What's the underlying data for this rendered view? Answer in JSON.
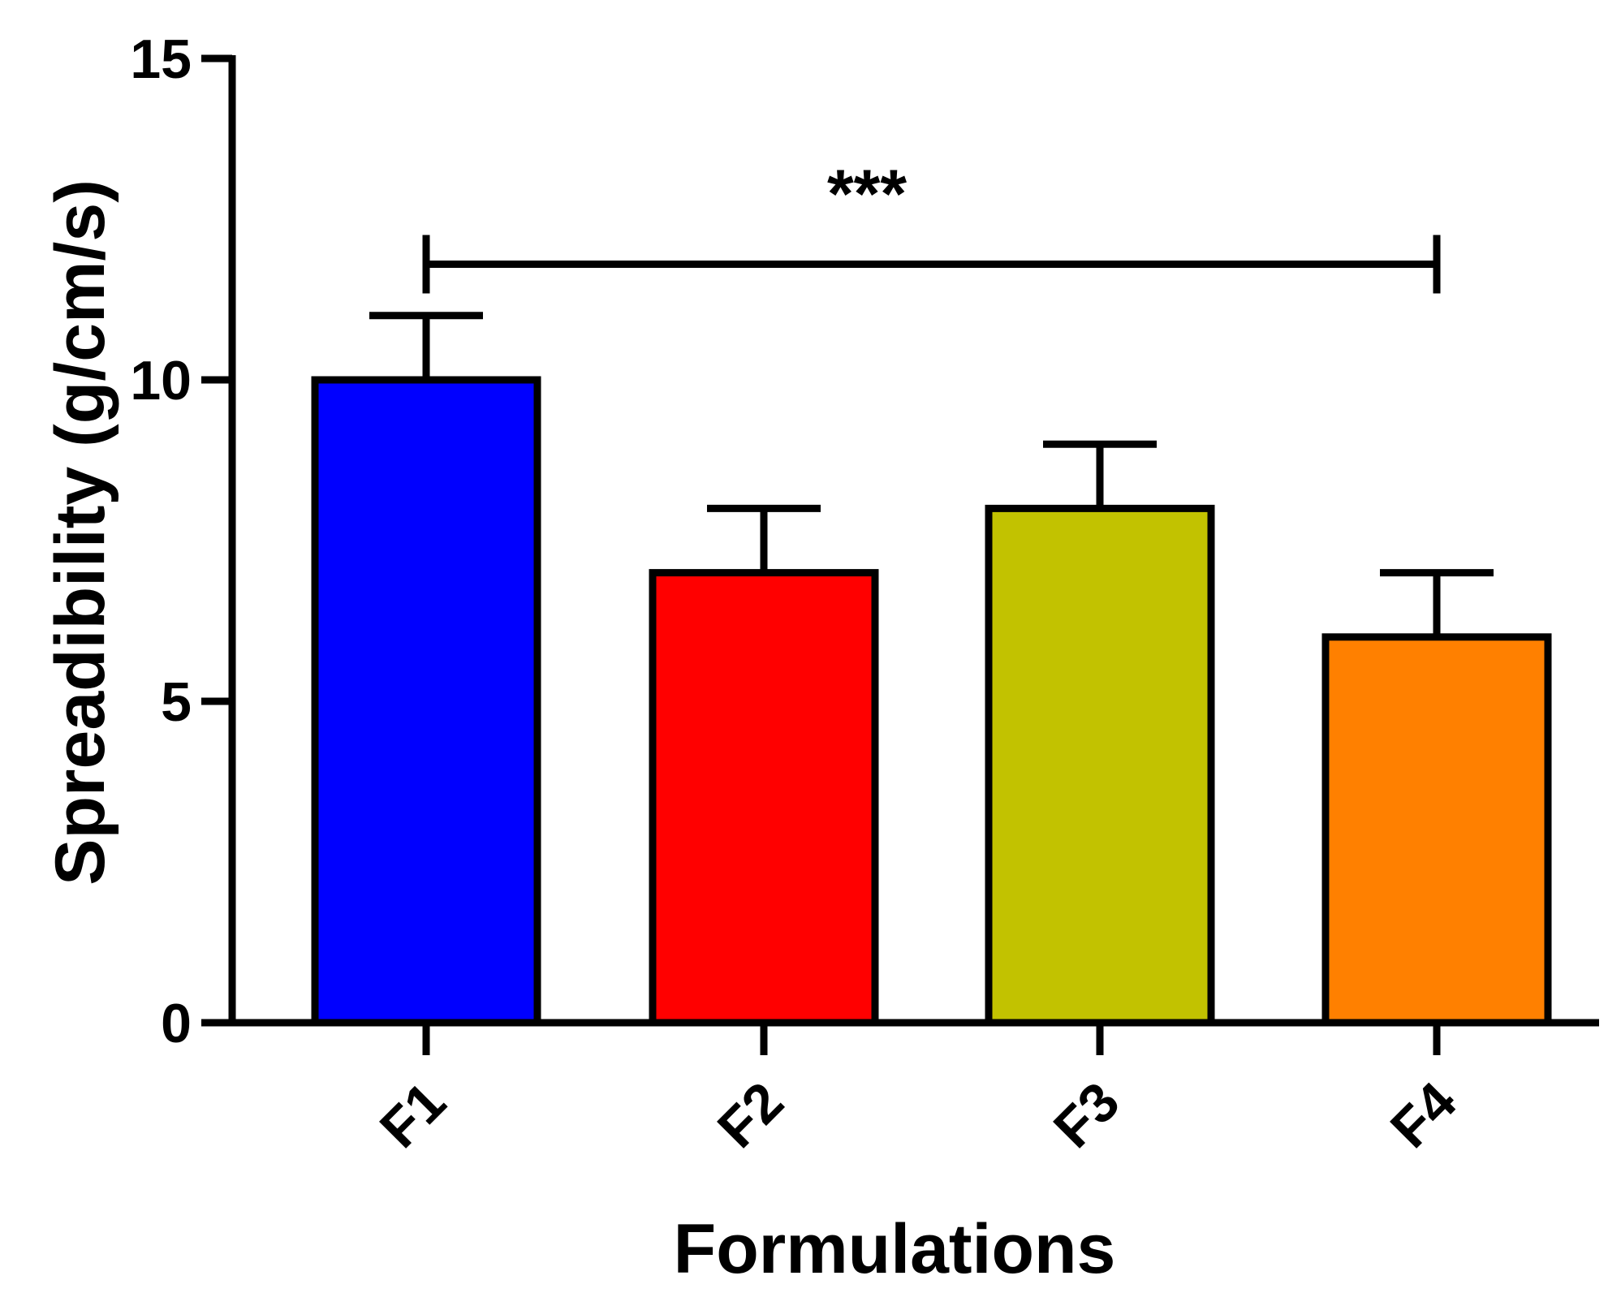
{
  "chart_data": {
    "type": "bar",
    "categories": [
      "F1",
      "F2",
      "F3",
      "F4"
    ],
    "values": [
      10,
      7,
      8,
      6
    ],
    "errors": [
      1,
      1,
      1,
      1
    ],
    "colors": [
      "#0000ff",
      "#ff0000",
      "#c2c200",
      "#ff8000"
    ],
    "xlabel": "Formulations",
    "ylabel": "Spreadibility (g/cm/s)",
    "ylim": [
      0,
      15
    ],
    "yticks": [
      0,
      5,
      10,
      15
    ],
    "yticks_labels": [
      "0",
      "5",
      "10",
      "15"
    ],
    "grid": false,
    "significance": {
      "from": "F1",
      "to": "F4",
      "label": "***",
      "level": 11.8
    }
  }
}
